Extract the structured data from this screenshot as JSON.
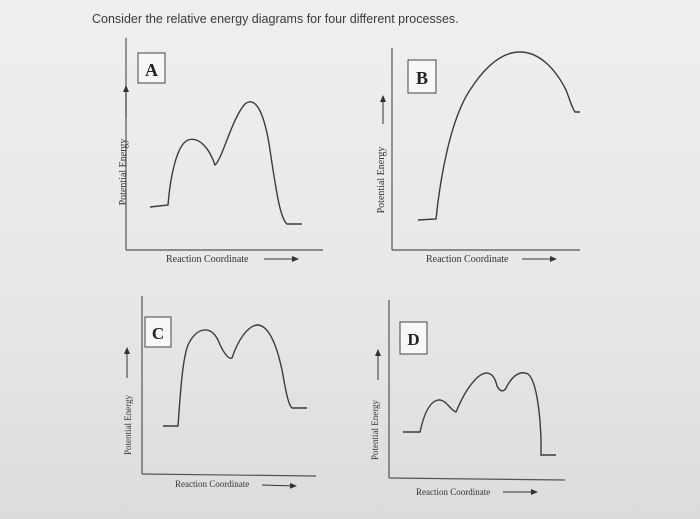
{
  "question": "Consider the relative energy diagrams for four different processes.",
  "diagrams": {
    "A": {
      "label": "A",
      "xlabel": "Reaction Coordinate",
      "ylabel": "Potential Energy"
    },
    "B": {
      "label": "B",
      "xlabel": "Reaction Coordinate",
      "ylabel": "Potential Energy"
    },
    "C": {
      "label": "C",
      "xlabel": "Reaction Coordinate",
      "ylabel": "Potential Energy"
    },
    "D": {
      "label": "D",
      "xlabel": "Reaction Coordinate",
      "ylabel": "Potential Energy"
    }
  },
  "colors": {
    "line": "#3c3c3c",
    "axis": "#444444"
  }
}
